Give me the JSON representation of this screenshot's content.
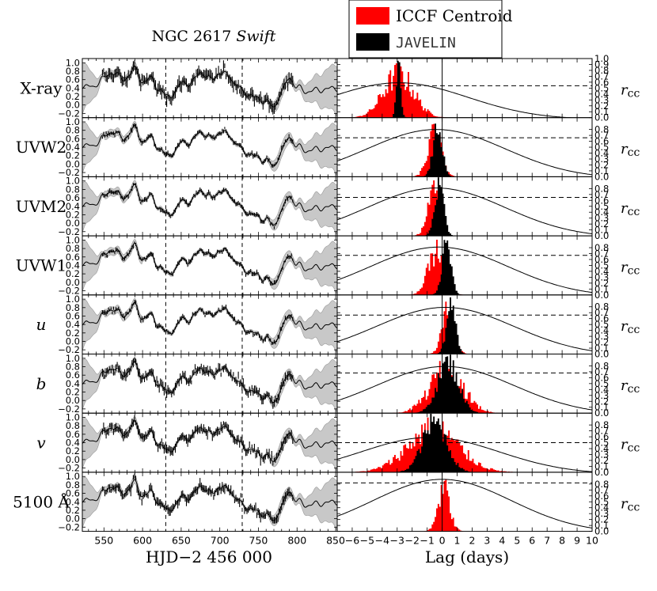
{
  "title": "NGC 2617",
  "title_italic": "Swift",
  "xlabel_left": "HJD−2 456 000",
  "xlabel_right": "Lag (days)",
  "rcc_label": "r",
  "rcc_sub": "cc",
  "legend": [
    {
      "label": "ICCF Centroid",
      "color": "#ff0000",
      "mono": false
    },
    {
      "label": "JAVELIN",
      "color": "#000000",
      "mono": true
    }
  ],
  "colors": {
    "iccf": "#ff0000",
    "javelin": "#000000",
    "gp_band": "#c8c8c8",
    "curve": "#000000"
  },
  "chart_data": {
    "type": "line",
    "panels": [
      {
        "band": "X-ray",
        "italic": false,
        "rmax": 0.62,
        "rthresh": 0.54,
        "peak_lag": -2.9,
        "iccf_mu": -2.9,
        "iccf_sd": 1.0,
        "jav_mu": -2.9,
        "jav_sd": 0.15
      },
      {
        "band": "UVW2",
        "italic": false,
        "rmax": 0.83,
        "rthresh": 0.66,
        "peak_lag": -0.4,
        "iccf_mu": -0.5,
        "iccf_sd": 0.45,
        "jav_mu": -0.3,
        "jav_sd": 0.3
      },
      {
        "band": "UVM2",
        "italic": false,
        "rmax": 0.84,
        "rthresh": 0.65,
        "peak_lag": -0.4,
        "iccf_mu": -0.6,
        "iccf_sd": 0.4,
        "jav_mu": -0.2,
        "jav_sd": 0.3
      },
      {
        "band": "UVW1",
        "italic": false,
        "rmax": 0.84,
        "rthresh": 0.67,
        "peak_lag": -0.2,
        "iccf_mu": -0.4,
        "iccf_sd": 0.55,
        "jav_mu": 0.3,
        "jav_sd": 0.3
      },
      {
        "band": "u",
        "italic": true,
        "rmax": 0.82,
        "rthresh": 0.66,
        "peak_lag": 0.2,
        "iccf_mu": 0.4,
        "iccf_sd": 0.4,
        "jav_mu": 0.6,
        "jav_sd": 0.3
      },
      {
        "band": "b",
        "italic": true,
        "rmax": 0.82,
        "rthresh": 0.68,
        "peak_lag": 0.2,
        "iccf_mu": 0.3,
        "iccf_sd": 1.1,
        "jav_mu": 0.4,
        "jav_sd": 0.7
      },
      {
        "band": "v",
        "italic": true,
        "rmax": 0.62,
        "rthresh": 0.5,
        "peak_lag": -0.8,
        "iccf_mu": -0.6,
        "iccf_sd": 1.7,
        "jav_mu": -0.5,
        "jav_sd": 0.8
      },
      {
        "band": "5100 Å",
        "italic": false,
        "rmax": 0.91,
        "rthresh": 0.82,
        "peak_lag": 0.0,
        "iccf_mu": 0.1,
        "iccf_sd": 0.4,
        "jav_mu": 0.1,
        "jav_sd": 0.3
      }
    ],
    "left_axis": {
      "xlim": [
        522,
        852
      ],
      "ylim": [
        -0.3,
        1.1
      ],
      "xticks": [
        550,
        600,
        650,
        700,
        750,
        800,
        850
      ],
      "yticks": [
        -0.2,
        0.0,
        0.2,
        0.4,
        0.6,
        0.8,
        1.0
      ],
      "ytick_labels": [
        "−0.2",
        "0.0",
        "0.2",
        "0.4",
        "0.6",
        "0.8",
        "1.0"
      ],
      "vlines": [
        630,
        729
      ]
    },
    "right_axis": {
      "xlim": [
        -7,
        10
      ],
      "ylim": [
        0.0,
        1.0
      ],
      "xticks": [
        -6,
        -5,
        -4,
        -3,
        -2,
        -1,
        0,
        1,
        2,
        3,
        4,
        5,
        6,
        7,
        8,
        9,
        10
      ],
      "xtick_labels": [
        "−6",
        "−5",
        "−4",
        "−3",
        "−2",
        "−1",
        "0",
        "1",
        "2",
        "3",
        "4",
        "5",
        "6",
        "7",
        "8",
        "9",
        "10"
      ],
      "yticks_first": [
        0.0,
        0.1,
        0.2,
        0.3,
        0.4,
        0.5,
        0.6,
        0.7,
        0.8,
        0.9,
        1.0
      ],
      "ytick_labels_first": [
        "0.0",
        "0.1",
        "0.2",
        "0.3",
        "0.4",
        "0.5",
        "0.6",
        "0.7",
        "0.8",
        "0.9",
        "1.0"
      ],
      "yticks": [
        0.0,
        0.1,
        0.2,
        0.3,
        0.4,
        0.5,
        0.6,
        0.7,
        0.8
      ],
      "ytick_labels": [
        "0.0",
        "0.1",
        "0.2",
        "0.3",
        "0.4",
        "0.5",
        "0.6",
        "0.7",
        "0.8"
      ]
    },
    "light_curve_shape": {
      "knots_x": [
        522,
        535,
        548,
        562,
        575,
        590,
        600,
        612,
        622,
        632,
        642,
        652,
        662,
        675,
        688,
        700,
        712,
        722,
        732,
        745,
        758,
        770,
        780,
        790,
        800,
        812,
        825,
        840,
        852
      ],
      "knots_y": [
        0.45,
        0.42,
        0.62,
        0.78,
        0.6,
        0.85,
        0.55,
        0.62,
        0.35,
        0.2,
        0.3,
        0.55,
        0.5,
        0.78,
        0.6,
        0.75,
        0.7,
        0.45,
        0.3,
        0.18,
        0.1,
        -0.05,
        0.3,
        0.65,
        0.42,
        0.32,
        0.35,
        0.38,
        0.4
      ]
    }
  }
}
